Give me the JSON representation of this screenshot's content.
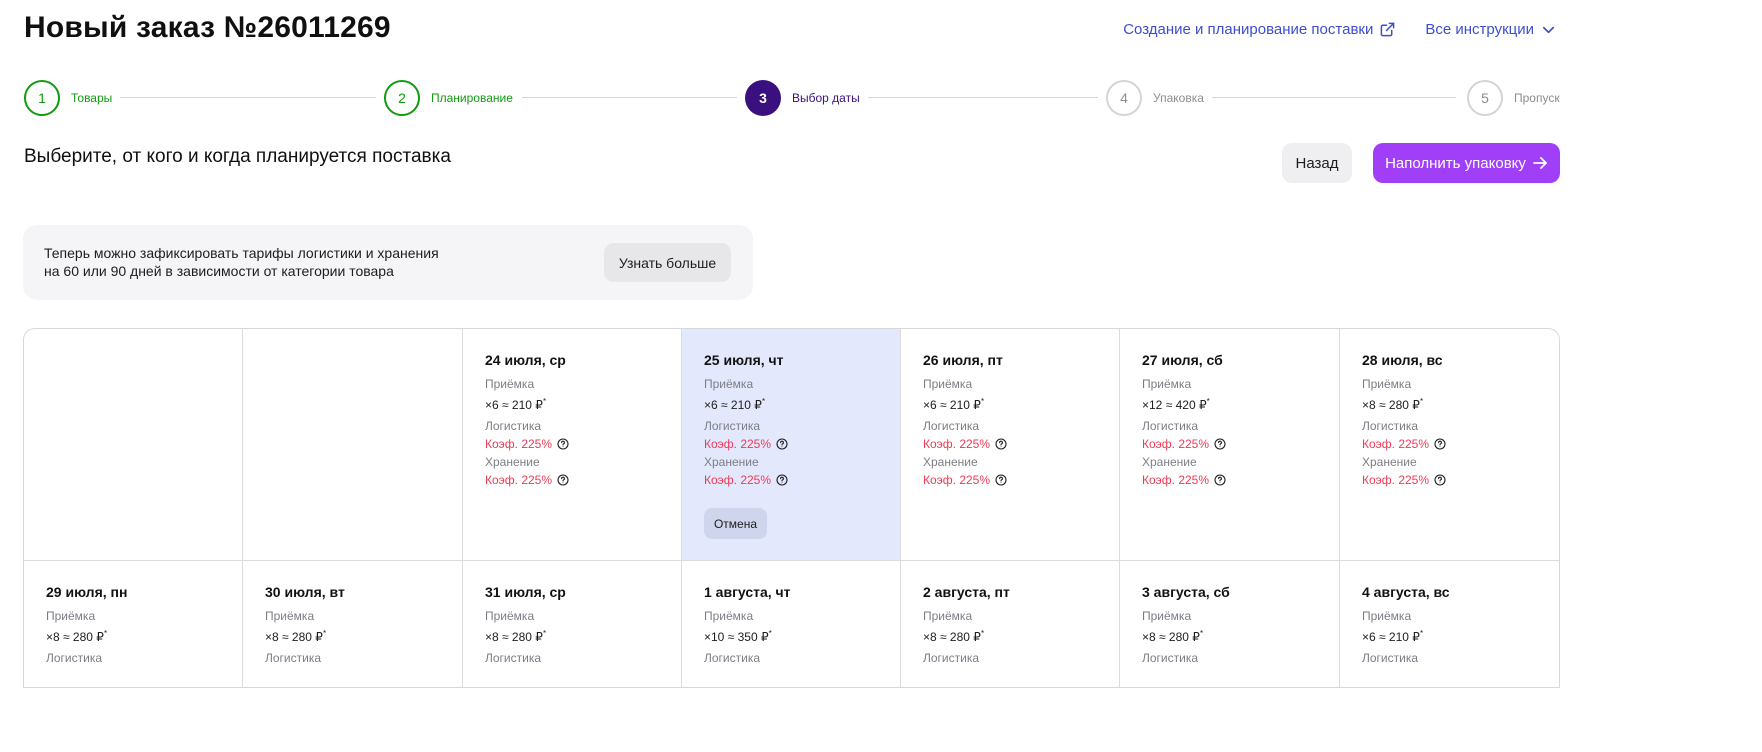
{
  "header": {
    "title": "Новый заказ №26011269",
    "link_planning": "Создание и планирование поставки",
    "link_instructions": "Все инструкции"
  },
  "stepper": {
    "steps": [
      {
        "num": "1",
        "label": "Товары",
        "state": "done"
      },
      {
        "num": "2",
        "label": "Планирование",
        "state": "done"
      },
      {
        "num": "3",
        "label": "Выбор даты",
        "state": "active"
      },
      {
        "num": "4",
        "label": "Упаковка",
        "state": "todo"
      },
      {
        "num": "5",
        "label": "Пропуск",
        "state": "todo"
      }
    ]
  },
  "section": {
    "title": "Выберите, от кого и когда планируется поставка",
    "back_label": "Назад",
    "fill_label": "Наполнить упаковку"
  },
  "banner": {
    "line1": "Теперь можно зафиксировать тарифы логистики и хранения",
    "line2": "на 60 или 90 дней в зависимости от категории товара",
    "button": "Узнать больше"
  },
  "labels": {
    "acceptance": "Приёмка",
    "logistics": "Логистика",
    "storage": "Хранение",
    "cancel": "Отмена"
  },
  "colors": {
    "accent": "#a13ef8",
    "active_step": "#3a0f7e",
    "done_step": "#119b12",
    "coef_red": "#ee3b55",
    "link": "#3c4ecf",
    "selected_cell": "#e3e8fc"
  },
  "calendar": {
    "row1": [
      {
        "empty": true
      },
      {
        "empty": true
      },
      {
        "date": "24 июля, ср",
        "acceptance": "×6 ≈ 210 ₽",
        "logistics": "Коэф. 225%",
        "storage": "Коэф. 225%"
      },
      {
        "date": "25 июля, чт",
        "acceptance": "×6 ≈ 210 ₽",
        "logistics": "Коэф. 225%",
        "storage": "Коэф. 225%",
        "selected": true
      },
      {
        "date": "26 июля, пт",
        "acceptance": "×6 ≈ 210 ₽",
        "logistics": "Коэф. 225%",
        "storage": "Коэф. 225%"
      },
      {
        "date": "27 июля, сб",
        "acceptance": "×12 ≈ 420 ₽",
        "logistics": "Коэф. 225%",
        "storage": "Коэф. 225%"
      },
      {
        "date": "28 июля, вс",
        "acceptance": "×8 ≈ 280 ₽",
        "logistics": "Коэф. 225%",
        "storage": "Коэф. 225%"
      }
    ],
    "row2": [
      {
        "date": "29 июля, пн",
        "acceptance": "×8 ≈ 280 ₽"
      },
      {
        "date": "30 июля, вт",
        "acceptance": "×8 ≈ 280 ₽"
      },
      {
        "date": "31 июля, ср",
        "acceptance": "×8 ≈ 280 ₽"
      },
      {
        "date": "1 августа, чт",
        "acceptance": "×10 ≈ 350 ₽"
      },
      {
        "date": "2 августа, пт",
        "acceptance": "×8 ≈ 280 ₽"
      },
      {
        "date": "3 августа, сб",
        "acceptance": "×8 ≈ 280 ₽"
      },
      {
        "date": "4 августа, вс",
        "acceptance": "×6 ≈ 210 ₽"
      }
    ]
  }
}
